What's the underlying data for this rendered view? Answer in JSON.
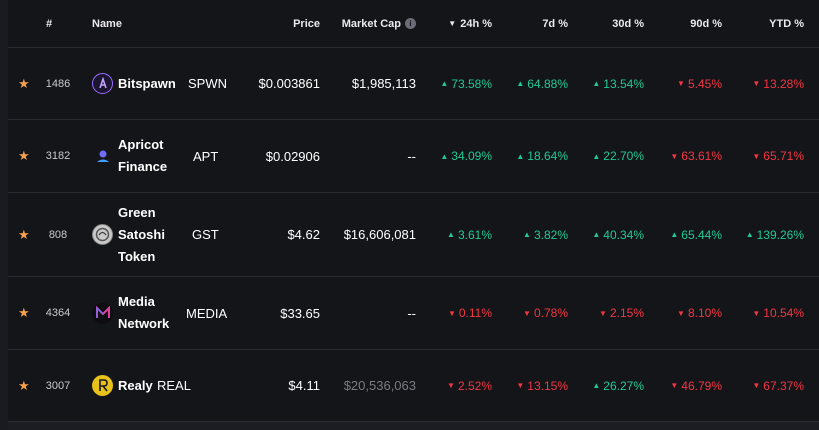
{
  "header": {
    "rank": "#",
    "name": "Name",
    "price": "Price",
    "market_cap": "Market Cap",
    "market_cap_info": "i",
    "sort_arrow": "▼",
    "h24": "24h %",
    "d7": "7d %",
    "d30": "30d %",
    "d90": "90d %",
    "ytd": "YTD %"
  },
  "star": "★",
  "up_arrow": "▲",
  "down_arrow": "▼",
  "rows": [
    {
      "rank": "1486",
      "name": "Bitspawn",
      "symbol": "SPWN",
      "price": "$0.003861",
      "market_cap": "$1,985,113",
      "h24": "73.58%",
      "d7": "64.88%",
      "d30": "13.54%",
      "d90": "5.45%",
      "ytd": "13.28%"
    },
    {
      "rank": "3182",
      "name_line1": "Apricot",
      "name_line2": "Finance",
      "symbol": "APT",
      "price": "$0.02906",
      "market_cap": "--",
      "h24": "34.09%",
      "d7": "18.64%",
      "d30": "22.70%",
      "d90": "63.61%",
      "ytd": "65.71%"
    },
    {
      "rank": "808",
      "name_line1": "Green",
      "name_line2": "Satoshi",
      "name_line3": "Token",
      "symbol": "GST",
      "price": "$4.62",
      "market_cap": "$16,606,081",
      "h24": "3.61%",
      "d7": "3.82%",
      "d30": "40.34%",
      "d90": "65.44%",
      "ytd": "139.26%"
    },
    {
      "rank": "4364",
      "name_line1": "Media",
      "name_line2": "Network",
      "symbol": "MEDIA",
      "price": "$33.65",
      "market_cap": "--",
      "h24": "0.11%",
      "d7": "0.78%",
      "d30": "2.15%",
      "d90": "8.10%",
      "ytd": "10.54%"
    },
    {
      "rank": "3007",
      "name": "Realy",
      "symbol": "REAL",
      "price": "$4.11",
      "market_cap": "$20,536,063",
      "h24": "2.52%",
      "d7": "13.15%",
      "d30": "26.27%",
      "d90": "46.79%",
      "ytd": "67.37%"
    }
  ],
  "colors": {
    "up": "#20c997",
    "down": "#f23645",
    "star": "#f5a04a"
  }
}
